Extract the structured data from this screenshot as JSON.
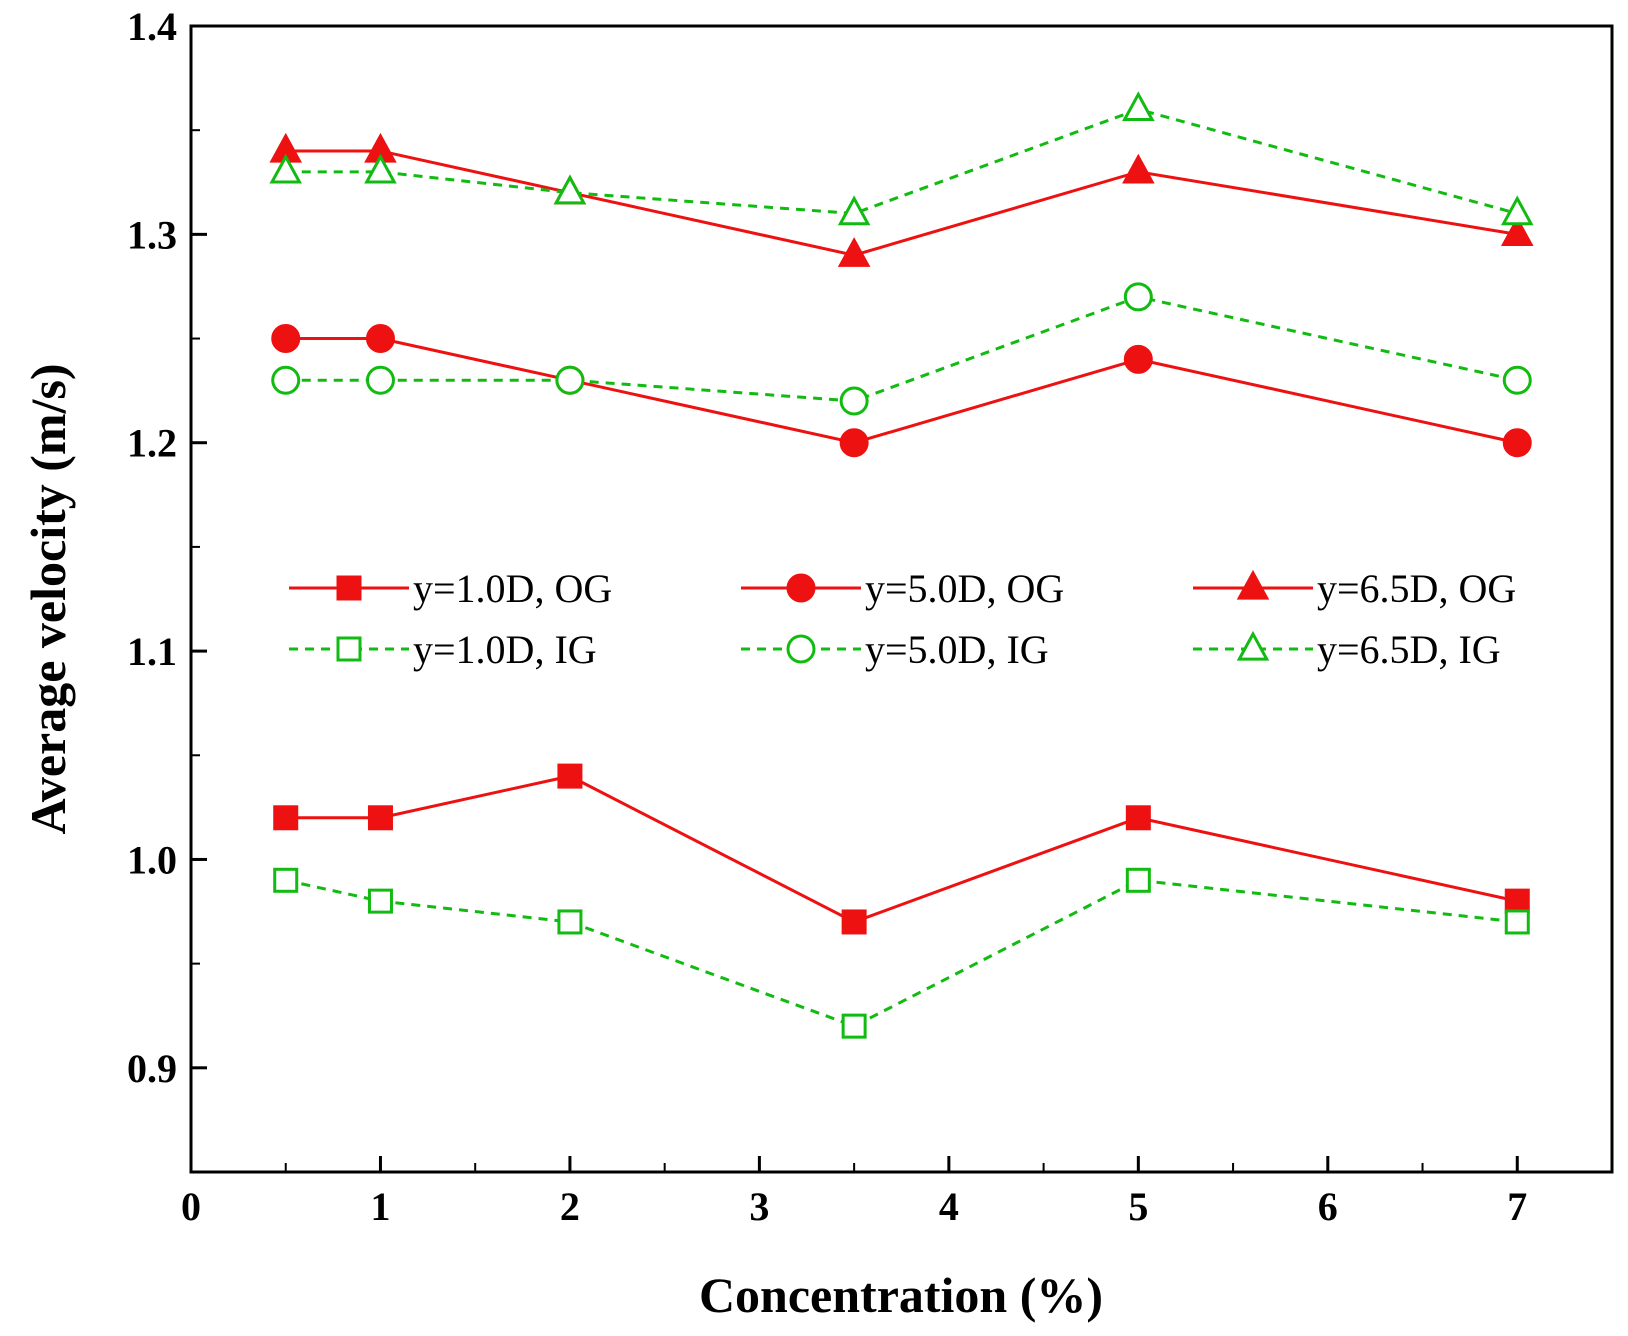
{
  "chart_data": {
    "type": "line",
    "xlabel": "Concentration (%)",
    "ylabel": "Average velocity (m/s)",
    "xlim": [
      0,
      7.5
    ],
    "ylim": [
      0.85,
      1.4
    ],
    "x_ticks": [
      0,
      1,
      2,
      3,
      4,
      5,
      6,
      7
    ],
    "x_tick_labels": [
      "0",
      "1",
      "2",
      "3",
      "4",
      "5",
      "6",
      "7"
    ],
    "y_ticks": [
      0.9,
      1.0,
      1.1,
      1.2,
      1.3,
      1.4
    ],
    "y_tick_labels": [
      "0.9",
      "1.0",
      "1.1",
      "1.2",
      "1.3",
      "1.4"
    ],
    "grid": false,
    "legend_position": "center",
    "x": [
      0.5,
      1,
      2,
      3.5,
      5,
      7
    ],
    "series": [
      {
        "name": "y=1.0D, OG",
        "values": [
          1.02,
          1.02,
          1.04,
          0.97,
          1.02,
          0.98
        ],
        "color": "#ee1111",
        "marker": "square",
        "filled": true,
        "dashed": false
      },
      {
        "name": "y=5.0D, OG",
        "values": [
          1.25,
          1.25,
          1.23,
          1.2,
          1.24,
          1.2
        ],
        "color": "#ee1111",
        "marker": "circle",
        "filled": true,
        "dashed": false
      },
      {
        "name": "y=6.5D, OG",
        "values": [
          1.34,
          1.34,
          1.32,
          1.29,
          1.33,
          1.3
        ],
        "color": "#ee1111",
        "marker": "triangle",
        "filled": true,
        "dashed": false
      },
      {
        "name": "y=1.0D, IG",
        "values": [
          0.99,
          0.98,
          0.97,
          0.92,
          0.99,
          0.97
        ],
        "color": "#11bb11",
        "marker": "square",
        "filled": false,
        "dashed": true
      },
      {
        "name": "y=5.0D, IG",
        "values": [
          1.23,
          1.23,
          1.23,
          1.22,
          1.27,
          1.23
        ],
        "color": "#11bb11",
        "marker": "circle",
        "filled": false,
        "dashed": true
      },
      {
        "name": "y=6.5D, IG",
        "values": [
          1.33,
          1.33,
          1.32,
          1.31,
          1.36,
          1.31
        ],
        "color": "#11bb11",
        "marker": "triangle",
        "filled": false,
        "dashed": true
      }
    ]
  }
}
